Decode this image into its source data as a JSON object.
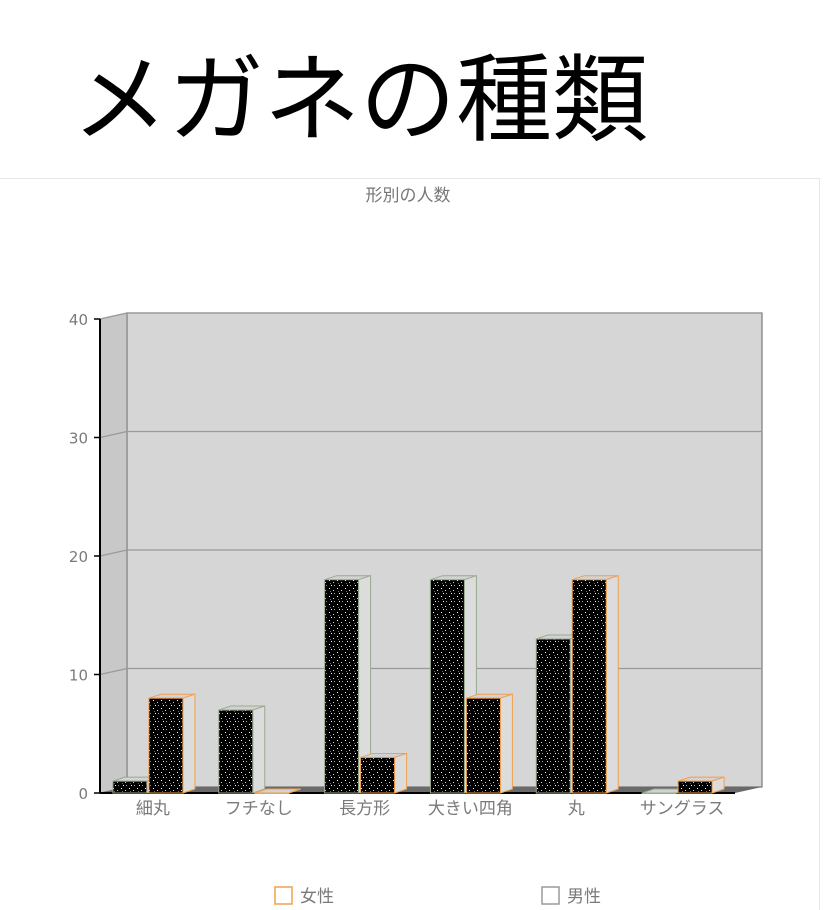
{
  "page_title": "メガネの種類",
  "chart_data": {
    "type": "bar",
    "three_d": true,
    "title": "形別の人数",
    "categories": [
      "細丸",
      "フチなし",
      "長方形",
      "大きい四角",
      "丸",
      "サングラス"
    ],
    "series": [
      {
        "name": "女性",
        "values": [
          1,
          7,
          18,
          18,
          13,
          0
        ]
      },
      {
        "name": "男性",
        "values": [
          8,
          0,
          3,
          8,
          18,
          1
        ]
      }
    ],
    "ylim": [
      0,
      40
    ],
    "y_ticks": [
      0,
      10,
      20,
      30,
      40
    ],
    "grid": true,
    "legend_position": "bottom",
    "colors": {
      "plot_background": "#d6d6d6",
      "bar_fill": "#000000",
      "series_0_edge": "#9aaa90",
      "series_1_edge": "#f0a050",
      "legend_0_box": "#f0a050",
      "legend_1_box": "#9a9a9a"
    }
  }
}
